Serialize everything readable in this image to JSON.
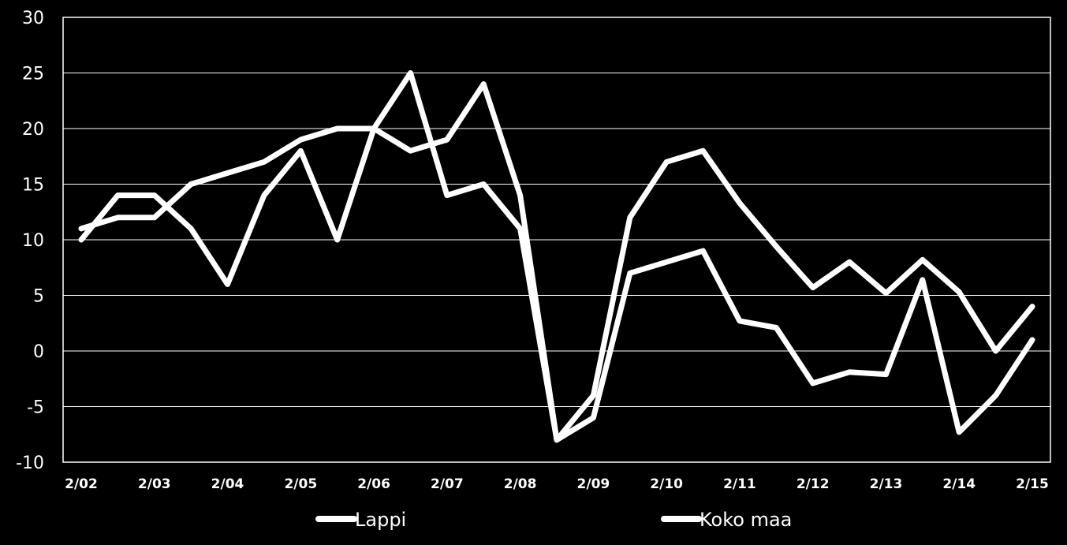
{
  "chart_data": {
    "type": "line",
    "title": "",
    "xlabel": "",
    "ylabel": "",
    "ylim": [
      -10,
      30
    ],
    "yticks": [
      30,
      25,
      20,
      15,
      10,
      5,
      0,
      -5,
      -10
    ],
    "grid": "horizontal",
    "legend_position": "bottom",
    "x_tick_labels": [
      "2/02",
      "2/03",
      "2/04",
      "2/05",
      "2/06",
      "2/07",
      "2/08",
      "2/09",
      "2/10",
      "2/11",
      "2/12",
      "2/13",
      "2/14",
      "2/15"
    ],
    "series_color": "#ffffff",
    "series": [
      {
        "name": "Lappi",
        "values": [
          10,
          14,
          14,
          11,
          6,
          14,
          18,
          10,
          20,
          25,
          14,
          15,
          11,
          -8,
          -6,
          7,
          8,
          9,
          2.7,
          2.1,
          -2.9,
          -1.9,
          -2.1,
          6.4,
          -7.3,
          -4,
          1
        ]
      },
      {
        "name": "Koko maa",
        "values": [
          11,
          12,
          12,
          15,
          16,
          17,
          19,
          20,
          20,
          18,
          19,
          24,
          14,
          -8,
          -4,
          12,
          17,
          18,
          13.3,
          9.4,
          5.7,
          8,
          5.2,
          8.2,
          5.3,
          0,
          4
        ]
      }
    ]
  }
}
